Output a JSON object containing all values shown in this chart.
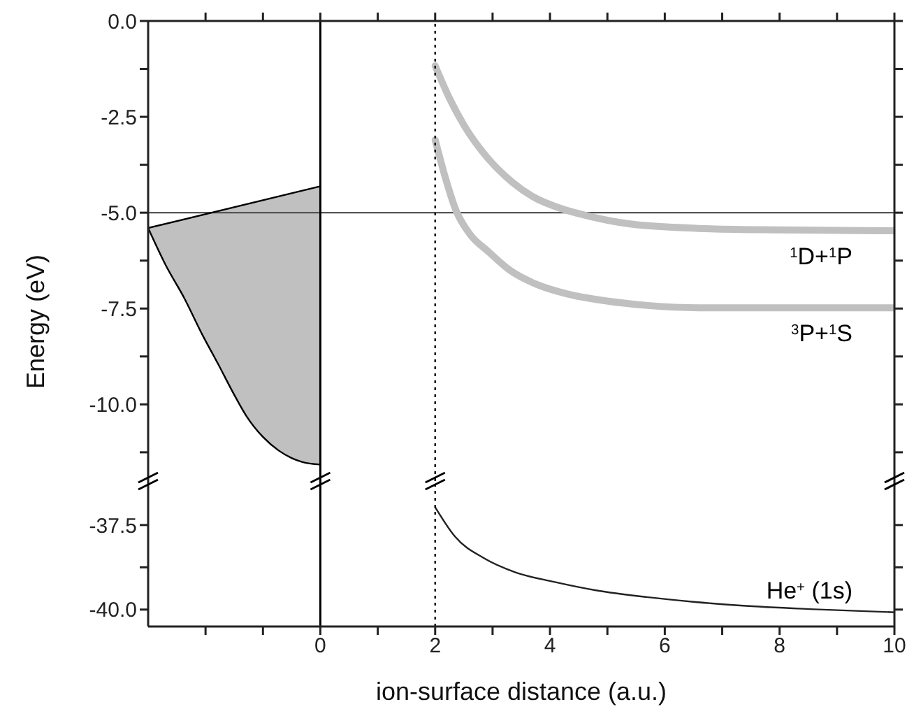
{
  "chart_data": [
    {
      "type": "line",
      "ylabel": "Energy (eV)",
      "xlim": [
        -3,
        10
      ],
      "xticks": [
        {
          "value": -2,
          "label": null
        },
        {
          "value": -1,
          "label": null
        },
        0,
        {
          "value": 1,
          "label": null
        },
        2,
        {
          "value": 3,
          "label": null
        },
        4,
        {
          "value": 5,
          "label": null
        },
        6,
        {
          "value": 7,
          "label": null
        },
        8,
        {
          "value": 9,
          "label": null
        },
        10
      ],
      "ylim": [
        -12,
        0
      ],
      "yticks": [
        {
          "value": 0,
          "label": "0.0"
        },
        {
          "value": -1.25,
          "label": null
        },
        {
          "value": -2.5,
          "label": "-2.5"
        },
        {
          "value": -3.75,
          "label": null
        },
        {
          "value": -5,
          "label": "-5.0"
        },
        {
          "value": -6.25,
          "label": null
        },
        {
          "value": -7.5,
          "label": "-7.5"
        },
        {
          "value": -8.75,
          "label": null
        },
        {
          "value": -10,
          "label": "-10.0"
        },
        {
          "value": -11.25,
          "label": null
        }
      ],
      "tick_labels": "y",
      "marker": "none",
      "ref_lines": [
        {
          "axis": "y",
          "value": -5,
          "color": "#555555",
          "line_style": "solid"
        },
        {
          "axis": "x",
          "value": 0,
          "color": "#000000",
          "line_style": "solid"
        },
        {
          "axis": "x",
          "value": 2,
          "color": "#000000",
          "line_style": "dotted"
        }
      ],
      "series": [
        {
          "color": "#000000",
          "x": [
            -3,
            -2.7,
            -2.37,
            -2.05,
            -1.78,
            -1.5,
            -1.29,
            -1,
            -0.73,
            -0.5,
            -0.32,
            0
          ],
          "values": [
            -5.4,
            -6.35,
            -7.23,
            -8.2,
            -8.95,
            -9.75,
            -10.3,
            -10.85,
            -11.2,
            -11.4,
            -11.5,
            -11.57
          ],
          "lower": [
            -5.4,
            -6.35,
            -7.23,
            -8.2,
            -8.95,
            -9.75,
            -10.3,
            -10.85,
            -11.2,
            -11.4,
            -11.5,
            -11.57
          ],
          "upper": [
            -5.4,
            -5.29,
            -5.17,
            -5.05,
            -4.95,
            -4.85,
            -4.77,
            -4.67,
            -4.57,
            -4.48,
            -4.42,
            -4.31
          ]
        },
        {
          "color": "#000000",
          "x": [
            -3,
            0
          ],
          "values": [
            -5.4,
            -4.31
          ]
        },
        {
          "name": "$^{1}$D+$^{1}$P",
          "color": "#c0c0c0",
          "x": [
            2,
            2.25,
            2.51,
            2.9,
            3.34,
            3.7,
            4.15,
            4.7,
            5.37,
            6.59,
            8,
            10
          ],
          "values": [
            -1.17,
            -2.02,
            -2.74,
            -3.55,
            -4.2,
            -4.58,
            -4.87,
            -5.1,
            -5.29,
            -5.41,
            -5.45,
            -5.47
          ]
        },
        {
          "name": "$^{3}$P+$^{1}$S",
          "color": "#c0c0c0",
          "x": [
            2,
            2.18,
            2.36,
            2.6,
            2.93,
            3.3,
            3.75,
            4.3,
            4.97,
            5.7,
            6.59,
            8,
            10
          ],
          "values": [
            -3.1,
            -4.1,
            -4.93,
            -5.55,
            -6.02,
            -6.5,
            -6.86,
            -7.12,
            -7.3,
            -7.42,
            -7.48,
            -7.48,
            -7.48
          ]
        }
      ]
    },
    {
      "type": "line",
      "xlabel": "ion-surface distance (a.u.)",
      "xlim": [
        -3,
        10
      ],
      "xticks": [
        {
          "value": -2,
          "label": null
        },
        {
          "value": -1,
          "label": null
        },
        0,
        {
          "value": 1,
          "label": null
        },
        2,
        {
          "value": 3,
          "label": null
        },
        4,
        {
          "value": 5,
          "label": null
        },
        6,
        {
          "value": 7,
          "label": null
        },
        8,
        {
          "value": 9,
          "label": null
        },
        10
      ],
      "ylim": [
        -40.5,
        -36.2
      ],
      "yticks": [
        {
          "value": -37.5,
          "label": "-37.5"
        },
        {
          "value": -38.75,
          "label": null
        },
        {
          "value": -40,
          "label": "-40.0"
        }
      ],
      "marker": "none",
      "ref_lines": [
        {
          "axis": "x",
          "value": 0,
          "color": "#000000",
          "line_style": "solid"
        },
        {
          "axis": "x",
          "value": 2,
          "color": "#000000",
          "line_style": "dotted"
        }
      ],
      "series": [
        {
          "name": "He$^{+}$ (1s)",
          "color": "#222222",
          "x": [
            2,
            2.35,
            2.85,
            3.4,
            4.07,
            4.8,
            5.68,
            6.5,
            7.32,
            8.6,
            10
          ],
          "values": [
            -36.97,
            -37.85,
            -38.48,
            -38.9,
            -39.18,
            -39.43,
            -39.63,
            -39.77,
            -39.88,
            -39.99,
            -40.08
          ]
        }
      ]
    }
  ]
}
